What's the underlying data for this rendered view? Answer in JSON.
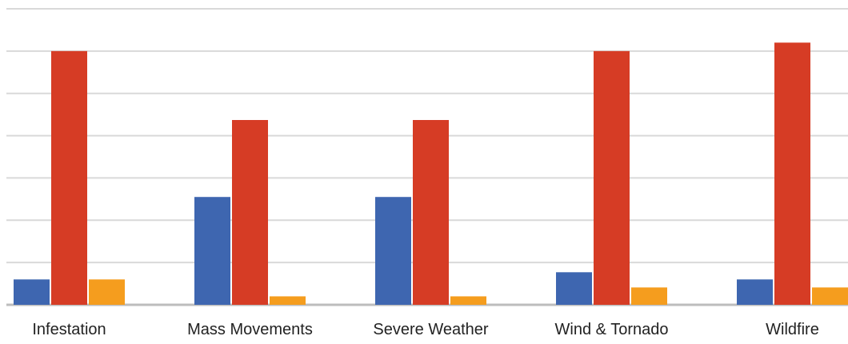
{
  "chart_data": {
    "type": "bar",
    "categories": [
      "Infestation",
      "Mass Movements",
      "Severe Weather",
      "Wind & Tornado",
      "Wildfire"
    ],
    "series": [
      {
        "values": [
          0.6,
          2.55,
          2.55,
          0.77,
          0.6
        ],
        "color": "#3e66b0"
      },
      {
        "values": [
          6.0,
          4.37,
          4.37,
          6.0,
          6.2
        ],
        "color": "#d63c25"
      },
      {
        "values": [
          0.6,
          0.2,
          0.2,
          0.41,
          0.41
        ],
        "color": "#f59d1e"
      }
    ],
    "ylim": [
      0,
      7
    ],
    "ytick_step": 1,
    "grid": true,
    "legend": "none"
  }
}
